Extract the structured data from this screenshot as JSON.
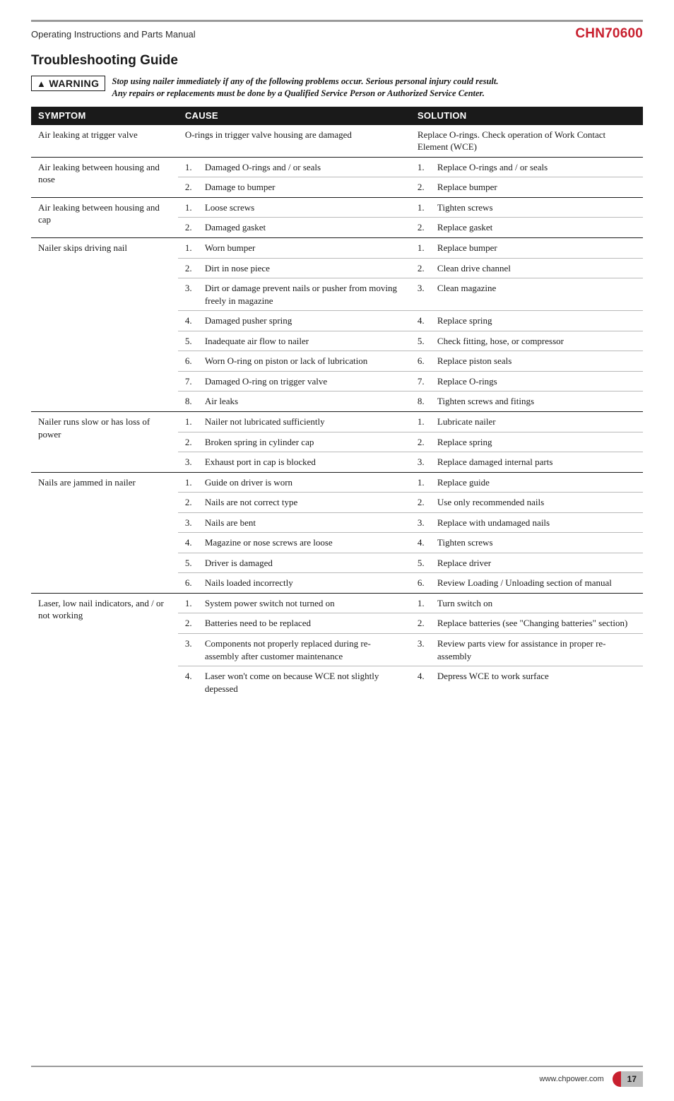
{
  "header": {
    "doc_title": "Operating Instructions and Parts Manual",
    "model": "CHN70600"
  },
  "section_title": "Troubleshooting Guide",
  "warning": {
    "label": "WARNING",
    "text_line1": "Stop using nailer immediately if any of the following problems occur. Serious personal injury could result.",
    "text_line2": "Any repairs or replacements must be done by a Qualified Service Person or Authorized Service Center."
  },
  "table": {
    "headers": {
      "symptom": "SYMPTOM",
      "cause": "CAUSE",
      "solution": "SOLUTION"
    },
    "groups": [
      {
        "symptom": "Air leaking at trigger valve",
        "rows": [
          {
            "cause_plain": "O-rings in trigger valve housing are damaged",
            "solution_plain": "Replace O-rings. Check operation of Work Contact Element (WCE)"
          }
        ]
      },
      {
        "symptom": "Air leaking between housing and nose",
        "rows": [
          {
            "num": "1.",
            "cause": "Damaged O-rings and / or seals",
            "solution": "Replace O-rings and / or seals"
          },
          {
            "num": "2.",
            "cause": "Damage to bumper",
            "solution": "Replace bumper"
          }
        ]
      },
      {
        "symptom": "Air leaking between housing and cap",
        "rows": [
          {
            "num": "1.",
            "cause": "Loose screws",
            "solution": "Tighten screws"
          },
          {
            "num": "2.",
            "cause": "Damaged gasket",
            "solution": "Replace gasket"
          }
        ]
      },
      {
        "symptom": "Nailer skips driving nail",
        "rows": [
          {
            "num": "1.",
            "cause": "Worn bumper",
            "solution": "Replace bumper"
          },
          {
            "num": "2.",
            "cause": "Dirt in nose piece",
            "solution": "Clean drive channel"
          },
          {
            "num": "3.",
            "cause": "Dirt or damage prevent nails or pusher from moving freely in magazine",
            "solution": "Clean magazine"
          },
          {
            "num": "4.",
            "cause": "Damaged pusher spring",
            "solution": "Replace spring"
          },
          {
            "num": "5.",
            "cause": "Inadequate air flow to nailer",
            "solution": "Check fitting, hose, or compressor"
          },
          {
            "num": "6.",
            "cause": "Worn O-ring on piston or lack of lubrication",
            "solution": "Replace piston seals"
          },
          {
            "num": "7.",
            "cause": "Damaged O-ring on trigger valve",
            "solution": "Replace O-rings"
          },
          {
            "num": "8.",
            "cause": "Air leaks",
            "solution": "Tighten screws and fitings"
          }
        ]
      },
      {
        "symptom": "Nailer runs slow or has loss of power",
        "rows": [
          {
            "num": "1.",
            "cause": "Nailer not lubricated sufficiently",
            "solution": "Lubricate nailer"
          },
          {
            "num": "2.",
            "cause": "Broken spring in cylinder cap",
            "solution": "Replace spring"
          },
          {
            "num": "3.",
            "cause": "Exhaust port in cap is blocked",
            "solution": "Replace damaged internal parts"
          }
        ]
      },
      {
        "symptom": "Nails are jammed in nailer",
        "rows": [
          {
            "num": "1.",
            "cause": "Guide on driver is worn",
            "solution": "Replace guide"
          },
          {
            "num": "2.",
            "cause": "Nails are not correct type",
            "solution": "Use only recommended nails"
          },
          {
            "num": "3.",
            "cause": "Nails are bent",
            "solution": "Replace with undamaged nails"
          },
          {
            "num": "4.",
            "cause": "Magazine or nose screws are loose",
            "solution": "Tighten screws"
          },
          {
            "num": "5.",
            "cause": "Driver is damaged",
            "solution": "Replace driver"
          },
          {
            "num": "6.",
            "cause": "Nails loaded incorrectly",
            "solution": "Review Loading / Unloading section of manual"
          }
        ]
      },
      {
        "symptom": "Laser, low nail indicators, and / or not working",
        "rows": [
          {
            "num": "1.",
            "cause": "System power switch not turned on",
            "solution": "Turn switch on"
          },
          {
            "num": "2.",
            "cause": "Batteries need to be replaced",
            "solution": "Replace batteries (see \"Changing batteries\" section)"
          },
          {
            "num": "3.",
            "cause": "Components not properly replaced during re-assembly after customer maintenance",
            "solution": "Review parts view for assistance in proper re-assembly"
          },
          {
            "num": "4.",
            "cause": "Laser won't come on because  WCE not slightly depessed",
            "solution": "Depress WCE to work surface"
          }
        ]
      }
    ]
  },
  "footer": {
    "url": "www.chpower.com",
    "page": "17"
  },
  "colors": {
    "accent_red": "#c8202f",
    "header_black": "#1a1a1a",
    "rule_gray": "#9a9a9a",
    "row_divider": "#b9b9b9",
    "pill_gray": "#bcbcbc"
  }
}
